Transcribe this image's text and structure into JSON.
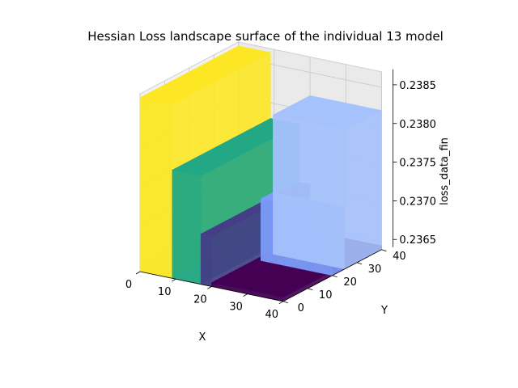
{
  "chart_data": {
    "type": "surface-3d",
    "title": "Hessian Loss landscape surface of the individual 13 model",
    "xlabel": "X",
    "ylabel": "Y",
    "zlabel": "loss_data_fin",
    "x_ticks": [
      "0",
      "10",
      "20",
      "30",
      "40"
    ],
    "y_ticks": [
      "0",
      "10",
      "20",
      "30",
      "40"
    ],
    "z_ticks": [
      "0.2365",
      "0.2370",
      "0.2375",
      "0.2380",
      "0.2385"
    ],
    "xlim": [
      0,
      40
    ],
    "ylim": [
      0,
      40
    ],
    "zlim": [
      0.2364,
      0.2387
    ],
    "colormap": "viridis",
    "regions": [
      {
        "x_range": [
          0,
          9
        ],
        "y_range": [
          0,
          40
        ],
        "level": 0.23865,
        "color": "#fde725"
      },
      {
        "x_range": [
          9,
          17
        ],
        "y_range": [
          0,
          40
        ],
        "level": 0.2378,
        "color": "#22a884"
      },
      {
        "x_range": [
          17,
          20
        ],
        "y_range": [
          0,
          40
        ],
        "level": 0.23705,
        "color": "#433e85"
      },
      {
        "x_range": [
          20,
          40
        ],
        "y_range": [
          0,
          40
        ],
        "level": 0.23645,
        "color": "#440154"
      },
      {
        "x_range": [
          20,
          40
        ],
        "y_range": [
          20,
          25
        ],
        "level": 0.2372,
        "color": "#7b9cf8"
      },
      {
        "x_range": [
          20,
          40
        ],
        "y_range": [
          25,
          40
        ],
        "level": 0.2382,
        "color": "#a5c2fc"
      }
    ],
    "grid": true
  }
}
